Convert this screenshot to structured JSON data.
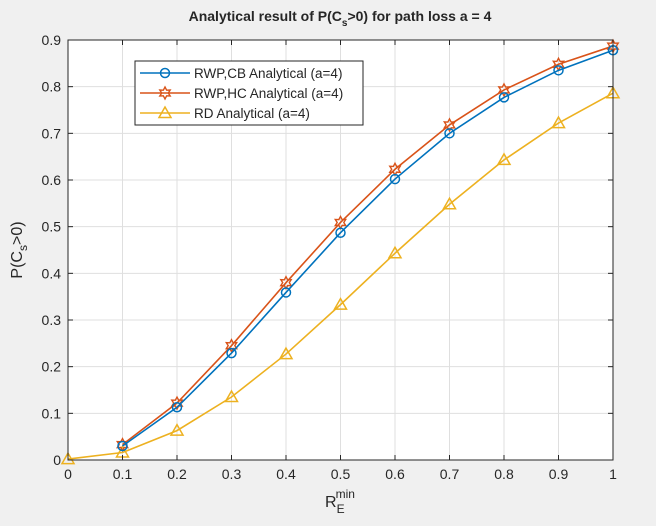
{
  "chart_data": {
    "type": "line",
    "title": "Analytical result of P(C_s>0) for path loss a = 4",
    "title_parts": {
      "pre": "Analytical result of P(C",
      "sub": "s",
      "post": ">0) for path loss a = 4"
    },
    "xlabel": "R_E^min",
    "xlabel_parts": {
      "base": "R",
      "sub": "E",
      "sup": "min"
    },
    "ylabel": "P(C_s>0)",
    "ylabel_parts": {
      "pre": "P(C",
      "sub": "s",
      "post": ">0)"
    },
    "xlim": [
      0,
      1
    ],
    "ylim": [
      0,
      0.9
    ],
    "xticks": [
      "0",
      "0.1",
      "0.2",
      "0.3",
      "0.4",
      "0.5",
      "0.6",
      "0.7",
      "0.8",
      "0.9",
      "1"
    ],
    "yticks": [
      "0",
      "0.1",
      "0.2",
      "0.3",
      "0.4",
      "0.5",
      "0.6",
      "0.7",
      "0.8",
      "0.9"
    ],
    "grid": true,
    "legend_position": "top-left",
    "x": [
      0.1,
      0.2,
      0.3,
      0.4,
      0.5,
      0.6,
      0.7,
      0.8,
      0.9,
      1.0
    ],
    "series": [
      {
        "name": "RWP,CB Analytical (a=4)",
        "color": "#0072BD",
        "marker": "circle",
        "values": [
          0.03,
          0.113,
          0.229,
          0.359,
          0.487,
          0.602,
          0.7,
          0.777,
          0.835,
          0.878
        ]
      },
      {
        "name": "RWP,HC Analytical (a=4)",
        "color": "#D95319",
        "marker": "hexagram",
        "values": [
          0.033,
          0.122,
          0.245,
          0.38,
          0.509,
          0.623,
          0.718,
          0.793,
          0.848,
          0.887
        ]
      },
      {
        "name": "RD Analytical (a=4)",
        "color": "#EDB120",
        "marker": "triangle",
        "x": [
          0,
          0.1,
          0.2,
          0.3,
          0.4,
          0.5,
          0.6,
          0.7,
          0.8,
          0.9,
          1.0
        ],
        "values": [
          0.002,
          0.016,
          0.063,
          0.135,
          0.227,
          0.333,
          0.443,
          0.548,
          0.643,
          0.722,
          0.786
        ]
      }
    ]
  }
}
